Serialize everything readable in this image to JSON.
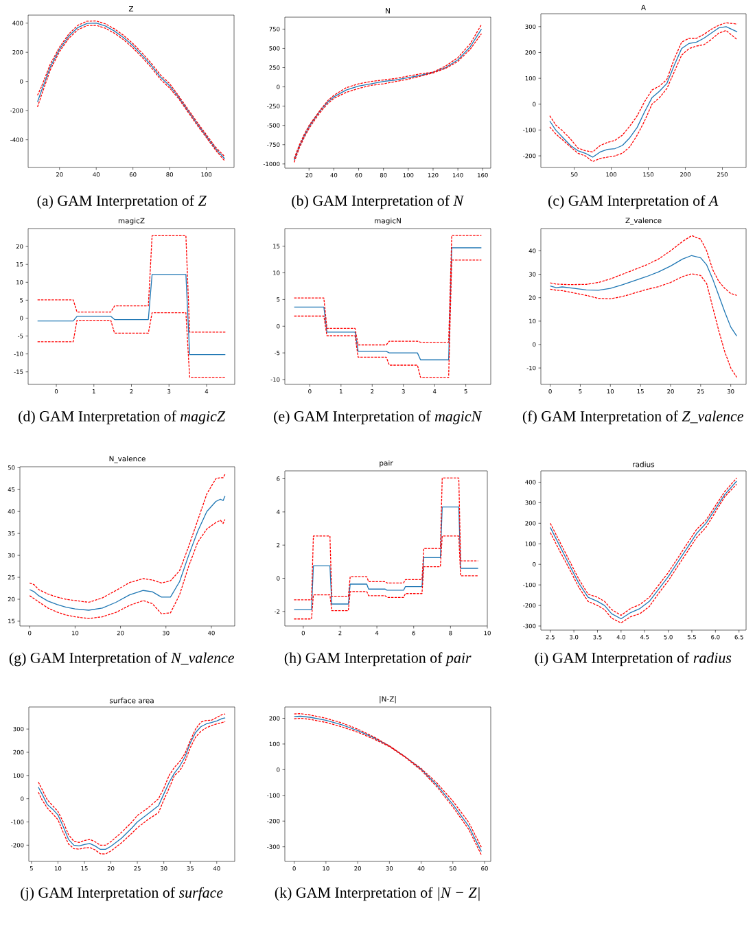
{
  "chart_data": [
    {
      "type": "line",
      "title": "Z",
      "annotations": [
        "(a) GAM Interpretation of *Z*"
      ],
      "xlim": [
        2.9,
        115.1
      ],
      "ylim": [
        -590,
        455
      ],
      "xticks": [
        20,
        40,
        60,
        80,
        100
      ],
      "yticks": [
        -400,
        -200,
        0,
        200,
        400
      ],
      "x": [
        8,
        10,
        15,
        20,
        25,
        30,
        35,
        40,
        45,
        50,
        55,
        60,
        65,
        70,
        75,
        80,
        85,
        90,
        95,
        100,
        105,
        110
      ],
      "series": [
        {
          "color": "#1f77b4",
          "line_style": "solid",
          "values": [
            -140,
            -70,
            100,
            220,
            310,
            370,
            398,
            400,
            380,
            345,
            300,
            245,
            180,
            110,
            30,
            -30,
            -110,
            -200,
            -290,
            -375,
            -460,
            -530
          ]
        },
        {
          "color": "#ff0000",
          "line_style": "dashed",
          "values": [
            -95,
            -40,
            120,
            235,
            325,
            385,
            413,
            415,
            395,
            360,
            315,
            260,
            195,
            125,
            45,
            -15,
            -100,
            -190,
            -280,
            -365,
            -450,
            -515
          ]
        },
        {
          "color": "#ff0000",
          "line_style": "dashed",
          "values": [
            -175,
            -100,
            80,
            205,
            295,
            355,
            383,
            385,
            365,
            330,
            285,
            230,
            165,
            95,
            15,
            -45,
            -120,
            -210,
            -300,
            -385,
            -470,
            -545
          ]
        }
      ]
    },
    {
      "type": "line",
      "title": "N",
      "annotations": [
        "(b) GAM Interpretation of *N*"
      ],
      "xlim": [
        0.5,
        166.5
      ],
      "ylim": [
        -1055,
        905
      ],
      "xticks": [
        20,
        40,
        60,
        80,
        100,
        120,
        140,
        160
      ],
      "yticks": [
        -1000,
        -750,
        -500,
        -250,
        0,
        250,
        500,
        750
      ],
      "x": [
        8,
        12,
        16,
        20,
        25,
        30,
        35,
        40,
        50,
        60,
        70,
        80,
        90,
        100,
        110,
        120,
        130,
        140,
        150,
        159
      ],
      "series": [
        {
          "color": "#1f77b4",
          "line_style": "solid",
          "values": [
            -950,
            -780,
            -640,
            -520,
            -400,
            -290,
            -200,
            -130,
            -40,
            10,
            40,
            70,
            90,
            120,
            150,
            190,
            250,
            350,
            520,
            750
          ]
        },
        {
          "color": "#ff0000",
          "line_style": "dashed",
          "values": [
            -930,
            -760,
            -620,
            -500,
            -390,
            -280,
            -180,
            -110,
            -10,
            40,
            70,
            90,
            110,
            140,
            170,
            190,
            270,
            380,
            560,
            810
          ]
        },
        {
          "color": "#ff0000",
          "line_style": "dashed",
          "values": [
            -980,
            -800,
            -660,
            -540,
            -420,
            -310,
            -220,
            -150,
            -70,
            -20,
            20,
            40,
            70,
            100,
            140,
            180,
            240,
            330,
            490,
            690
          ]
        }
      ]
    },
    {
      "type": "line",
      "title": "A",
      "annotations": [
        "(c) GAM Interpretation of *A*"
      ],
      "xlim": [
        5,
        282
      ],
      "ylim": [
        -245,
        350
      ],
      "xticks": [
        50,
        100,
        150,
        200,
        250
      ],
      "yticks": [
        -200,
        -100,
        0,
        100,
        200,
        300
      ],
      "x": [
        17,
        25,
        35,
        45,
        55,
        65,
        75,
        85,
        95,
        105,
        115,
        125,
        135,
        145,
        155,
        165,
        175,
        185,
        195,
        205,
        215,
        225,
        235,
        245,
        255,
        270
      ],
      "series": [
        {
          "color": "#1f77b4",
          "line_style": "solid",
          "values": [
            -65,
            -100,
            -130,
            -160,
            -180,
            -190,
            -205,
            -185,
            -175,
            -172,
            -160,
            -130,
            -90,
            -30,
            25,
            50,
            80,
            150,
            215,
            235,
            240,
            255,
            275,
            295,
            300,
            280
          ]
        },
        {
          "color": "#ff0000",
          "line_style": "dashed",
          "values": [
            -45,
            -80,
            -105,
            -135,
            -170,
            -180,
            -185,
            -160,
            -148,
            -140,
            -120,
            -85,
            -45,
            10,
            55,
            70,
            95,
            175,
            240,
            255,
            255,
            270,
            290,
            305,
            315,
            310
          ]
        },
        {
          "color": "#ff0000",
          "line_style": "dashed",
          "values": [
            -88,
            -115,
            -140,
            -165,
            -190,
            -200,
            -222,
            -210,
            -205,
            -200,
            -190,
            -165,
            -120,
            -65,
            0,
            25,
            60,
            125,
            190,
            215,
            225,
            230,
            250,
            275,
            285,
            250
          ]
        }
      ]
    },
    {
      "type": "line",
      "title": "magicZ",
      "annotations": [
        "(d) GAM Interpretation of *magicZ*"
      ],
      "xlim": [
        -0.75,
        4.75
      ],
      "ylim": [
        -18.5,
        25
      ],
      "xticks": [
        0,
        1,
        2,
        3,
        4
      ],
      "yticks": [
        -15,
        -10,
        -5,
        0,
        5,
        10,
        15,
        20
      ],
      "x": [
        -0.5,
        0.45,
        0.55,
        1.45,
        1.55,
        2.45,
        2.55,
        3.45,
        3.55,
        4.5
      ],
      "series": [
        {
          "color": "#1f77b4",
          "line_style": "solid",
          "values": [
            -0.8,
            -0.8,
            0.5,
            0.5,
            -0.4,
            -0.4,
            12.2,
            12.2,
            -10.2,
            -10.2
          ]
        },
        {
          "color": "#ff0000",
          "line_style": "dashed",
          "values": [
            5.1,
            5.1,
            1.7,
            1.7,
            3.4,
            3.4,
            23,
            23,
            -3.9,
            -3.9
          ]
        },
        {
          "color": "#ff0000",
          "line_style": "dashed",
          "values": [
            -6.6,
            -6.6,
            -0.6,
            -0.6,
            -4.2,
            -4.2,
            1.5,
            1.5,
            -16.5,
            -16.5
          ]
        }
      ]
    },
    {
      "type": "line",
      "title": "magicN",
      "annotations": [
        "(e) GAM Interpretation of *magicN*"
      ],
      "xlim": [
        -0.8,
        5.8
      ],
      "ylim": [
        -10.9,
        18.3
      ],
      "xticks": [
        0,
        1,
        2,
        3,
        4,
        5
      ],
      "yticks": [
        -10,
        -5,
        0,
        5,
        10,
        15
      ],
      "x": [
        -0.5,
        0.45,
        0.55,
        1.45,
        1.55,
        2.45,
        2.55,
        3.45,
        3.55,
        4.45,
        4.55,
        5.5
      ],
      "series": [
        {
          "color": "#1f77b4",
          "line_style": "solid",
          "values": [
            3.6,
            3.6,
            -1.1,
            -1.1,
            -4.7,
            -4.7,
            -5.0,
            -5.0,
            -6.3,
            -6.3,
            14.7,
            14.7
          ]
        },
        {
          "color": "#ff0000",
          "line_style": "dashed",
          "values": [
            5.3,
            5.3,
            -0.4,
            -0.4,
            -3.5,
            -3.5,
            -2.8,
            -2.8,
            -3.0,
            -3.0,
            17.0,
            17.0
          ]
        },
        {
          "color": "#ff0000",
          "line_style": "dashed",
          "values": [
            1.9,
            1.9,
            -1.8,
            -1.8,
            -5.8,
            -5.8,
            -7.3,
            -7.3,
            -9.6,
            -9.6,
            12.4,
            12.4
          ]
        }
      ]
    },
    {
      "type": "line",
      "title": "Z_valence",
      "annotations": [
        "(f) GAM Interpretation of *Z_valence*"
      ],
      "xlim": [
        -1.55,
        32.55
      ],
      "ylim": [
        -17,
        49.5
      ],
      "xticks": [
        0,
        5,
        10,
        15,
        20,
        25,
        30
      ],
      "yticks": [
        -10,
        0,
        10,
        20,
        30,
        40
      ],
      "x": [
        0,
        1,
        2,
        3,
        4,
        6,
        8,
        10,
        12,
        14,
        16,
        18,
        20,
        22,
        23.5,
        25,
        26,
        27,
        28,
        29,
        30,
        31
      ],
      "series": [
        {
          "color": "#1f77b4",
          "line_style": "solid",
          "values": [
            25,
            24.3,
            24.6,
            24.3,
            24,
            23.3,
            23.2,
            24,
            25.5,
            27.3,
            29,
            31,
            33.5,
            36.5,
            38,
            37,
            34,
            28,
            21,
            14,
            7.5,
            3.6
          ]
        },
        {
          "color": "#ff0000",
          "line_style": "dashed",
          "values": [
            26.3,
            25.8,
            25.7,
            25.6,
            25.6,
            25.7,
            26.5,
            28,
            30,
            32,
            34,
            36.5,
            40,
            44,
            46.5,
            45,
            40,
            32,
            27,
            24,
            21.8,
            21
          ]
        },
        {
          "color": "#ff0000",
          "line_style": "dashed",
          "values": [
            23.6,
            23.2,
            23,
            22.5,
            22,
            21,
            19.7,
            19.5,
            20.5,
            22,
            23.5,
            24.7,
            26.5,
            29,
            30.2,
            29.5,
            26,
            16,
            6,
            -3,
            -10,
            -14
          ]
        }
      ]
    },
    {
      "type": "line",
      "title": "N_valence",
      "annotations": [
        "(g) GAM Interpretation of *N_valence*"
      ],
      "xlim": [
        -2.15,
        45.15
      ],
      "ylim": [
        13.9,
        50.2
      ],
      "xticks": [
        0,
        10,
        20,
        30,
        40
      ],
      "yticks": [
        15,
        20,
        25,
        30,
        35,
        40,
        45,
        50
      ],
      "x": [
        0,
        1,
        2,
        4,
        6,
        8,
        10,
        13,
        16,
        19,
        22,
        25,
        27,
        29,
        31,
        33,
        35,
        37,
        39,
        41,
        42,
        42.6,
        43
      ],
      "series": [
        {
          "color": "#1f77b4",
          "line_style": "solid",
          "values": [
            22.2,
            21.7,
            20.8,
            19.6,
            18.8,
            18.2,
            17.8,
            17.5,
            18,
            19.3,
            21.0,
            22,
            21.7,
            20.5,
            20.5,
            24,
            30,
            35.5,
            40,
            42.3,
            42.8,
            42.5,
            43.5
          ]
        },
        {
          "color": "#ff0000",
          "line_style": "dashed",
          "values": [
            23.7,
            23.3,
            22.2,
            21.2,
            20.5,
            20,
            19.7,
            19.3,
            20.3,
            22,
            23.8,
            24.7,
            24.4,
            23.7,
            24.2,
            26.5,
            32,
            38,
            44,
            47.5,
            47.7,
            47.7,
            48.5
          ]
        },
        {
          "color": "#ff0000",
          "line_style": "dashed",
          "values": [
            20.8,
            20.1,
            19.4,
            18,
            17.1,
            16.4,
            16,
            15.6,
            16,
            17,
            18.6,
            19.7,
            19,
            16.7,
            16.9,
            21,
            27.5,
            33,
            36,
            37.5,
            38,
            37.3,
            38.2
          ]
        }
      ]
    },
    {
      "type": "line",
      "title": "pair",
      "annotations": [
        "(h) GAM Interpretation of *pair*"
      ],
      "xlim": [
        -1,
        10
      ],
      "ylim": [
        -2.875,
        6.475
      ],
      "xticks": [
        0,
        2,
        4,
        6,
        8,
        10
      ],
      "yticks": [
        -2,
        0,
        2,
        4,
        6
      ],
      "x": [
        -0.5,
        0.45,
        0.55,
        1.45,
        1.55,
        2.45,
        2.55,
        3.45,
        3.55,
        4.45,
        4.55,
        5.45,
        5.55,
        6.45,
        6.55,
        7.45,
        7.55,
        8.45,
        8.55,
        9.5
      ],
      "series": [
        {
          "color": "#1f77b4",
          "line_style": "solid",
          "values": [
            -1.9,
            -1.9,
            0.75,
            0.75,
            -1.55,
            -1.55,
            -0.35,
            -0.35,
            -0.65,
            -0.65,
            -0.72,
            -0.72,
            -0.5,
            -0.5,
            1.25,
            1.25,
            4.3,
            4.3,
            0.6,
            0.6
          ]
        },
        {
          "color": "#ff0000",
          "line_style": "dashed",
          "values": [
            -1.3,
            -1.3,
            2.55,
            2.55,
            -1.1,
            -1.1,
            0.1,
            0.1,
            -0.2,
            -0.2,
            -0.28,
            -0.28,
            -0.08,
            -0.08,
            1.8,
            1.8,
            6.05,
            6.05,
            1.05,
            1.05
          ]
        },
        {
          "color": "#ff0000",
          "line_style": "dashed",
          "values": [
            -2.45,
            -2.45,
            -1.0,
            -1.0,
            -1.95,
            -1.95,
            -0.8,
            -0.8,
            -1.05,
            -1.05,
            -1.15,
            -1.15,
            -0.92,
            -0.92,
            0.7,
            0.7,
            2.55,
            2.55,
            0.15,
            0.15
          ]
        }
      ]
    },
    {
      "type": "line",
      "title": "radius",
      "annotations": [
        "(i) GAM Interpretation of *radius*"
      ],
      "xlim": [
        2.3,
        6.65
      ],
      "ylim": [
        -320,
        455
      ],
      "xticks": [
        2.5,
        {
          "value": 3,
          "label": "3.0"
        },
        3.5,
        {
          "value": 4,
          "label": "4.0"
        },
        4.5,
        {
          "value": 5,
          "label": "5.0"
        },
        5.5,
        {
          "value": 6,
          "label": "6.0"
        },
        6.5
      ],
      "yticks": [
        -300,
        -200,
        -100,
        0,
        100,
        200,
        300,
        400
      ],
      "x": [
        2.5,
        2.7,
        2.9,
        3.1,
        3.3,
        3.5,
        3.65,
        3.8,
        4.0,
        4.2,
        4.4,
        4.6,
        4.8,
        5.0,
        5.2,
        5.4,
        5.6,
        5.8,
        6.0,
        6.2,
        6.45
      ],
      "series": [
        {
          "color": "#1f77b4",
          "line_style": "solid",
          "values": [
            180,
            90,
            0,
            -90,
            -160,
            -180,
            -200,
            -240,
            -265,
            -235,
            -215,
            -180,
            -120,
            -60,
            10,
            80,
            150,
            200,
            270,
            340,
            405
          ]
        },
        {
          "color": "#ff0000",
          "line_style": "dashed",
          "values": [
            200,
            110,
            20,
            -70,
            -145,
            -160,
            -180,
            -220,
            -248,
            -215,
            -195,
            -160,
            -100,
            -40,
            30,
            100,
            170,
            215,
            285,
            355,
            420
          ]
        },
        {
          "color": "#ff0000",
          "line_style": "dashed",
          "values": [
            155,
            65,
            -20,
            -110,
            -180,
            -200,
            -220,
            -262,
            -285,
            -255,
            -240,
            -205,
            -140,
            -80,
            -10,
            60,
            130,
            180,
            255,
            330,
            390
          ]
        }
      ]
    },
    {
      "type": "line",
      "title": "surface area",
      "annotations": [
        "(j) GAM Interpretation of *surface*"
      ],
      "xlim": [
        4.5,
        43.4
      ],
      "ylim": [
        -270,
        395
      ],
      "xticks": [
        5,
        10,
        15,
        20,
        25,
        30,
        35,
        40
      ],
      "yticks": [
        -200,
        -100,
        0,
        100,
        200,
        300
      ],
      "x": [
        6.3,
        7,
        8,
        9,
        10,
        11,
        12,
        13,
        14,
        15,
        16,
        17,
        18,
        19,
        20,
        22,
        24,
        25,
        27,
        29,
        30,
        31,
        32,
        33,
        34,
        35,
        36,
        37,
        38,
        39,
        40,
        41,
        41.6
      ],
      "series": [
        {
          "color": "#1f77b4",
          "line_style": "solid",
          "values": [
            50,
            20,
            -25,
            -45,
            -70,
            -120,
            -175,
            -200,
            -203,
            -197,
            -193,
            -203,
            -218,
            -218,
            -205,
            -170,
            -125,
            -100,
            -65,
            -30,
            20,
            70,
            110,
            140,
            180,
            240,
            285,
            310,
            322,
            328,
            335,
            345,
            348
          ]
        },
        {
          "color": "#ff0000",
          "line_style": "dashed",
          "values": [
            72,
            40,
            -5,
            -30,
            -55,
            -100,
            -155,
            -183,
            -188,
            -180,
            -175,
            -185,
            -200,
            -200,
            -185,
            -145,
            -100,
            -72,
            -40,
            0,
            45,
            100,
            135,
            160,
            195,
            250,
            300,
            330,
            337,
            338,
            350,
            362,
            365
          ]
        },
        {
          "color": "#ff0000",
          "line_style": "dashed",
          "values": [
            28,
            -5,
            -40,
            -65,
            -90,
            -145,
            -195,
            -215,
            -217,
            -212,
            -210,
            -220,
            -237,
            -238,
            -225,
            -190,
            -148,
            -125,
            -90,
            -60,
            -5,
            45,
            100,
            120,
            160,
            220,
            265,
            290,
            305,
            315,
            322,
            328,
            332
          ]
        }
      ]
    },
    {
      "type": "line",
      "title": "|N-Z|",
      "annotations": [
        "(k) GAM Interpretation of *|N − Z|*"
      ],
      "xlim": [
        -2.95,
        61.95
      ],
      "ylim": [
        -357,
        244
      ],
      "xticks": [
        0,
        10,
        20,
        30,
        40,
        50,
        60
      ],
      "yticks": [
        -300,
        -200,
        -100,
        0,
        100,
        200
      ],
      "x": [
        0,
        2,
        5,
        10,
        15,
        20,
        25,
        30,
        35,
        40,
        45,
        50,
        55,
        59
      ],
      "series": [
        {
          "color": "#1f77b4",
          "line_style": "solid",
          "values": [
            207,
            208,
            204,
            192,
            175,
            152,
            125,
            92,
            50,
            2,
            -60,
            -135,
            -220,
            -318
          ]
        },
        {
          "color": "#ff0000",
          "line_style": "dashed",
          "values": [
            217,
            218,
            213,
            200,
            182,
            158,
            128,
            93,
            50,
            5,
            -52,
            -122,
            -205,
            -302
          ]
        },
        {
          "color": "#ff0000",
          "line_style": "dashed",
          "values": [
            198,
            200,
            196,
            184,
            167,
            146,
            120,
            90,
            48,
            -2,
            -67,
            -145,
            -232,
            -332
          ]
        }
      ]
    }
  ]
}
